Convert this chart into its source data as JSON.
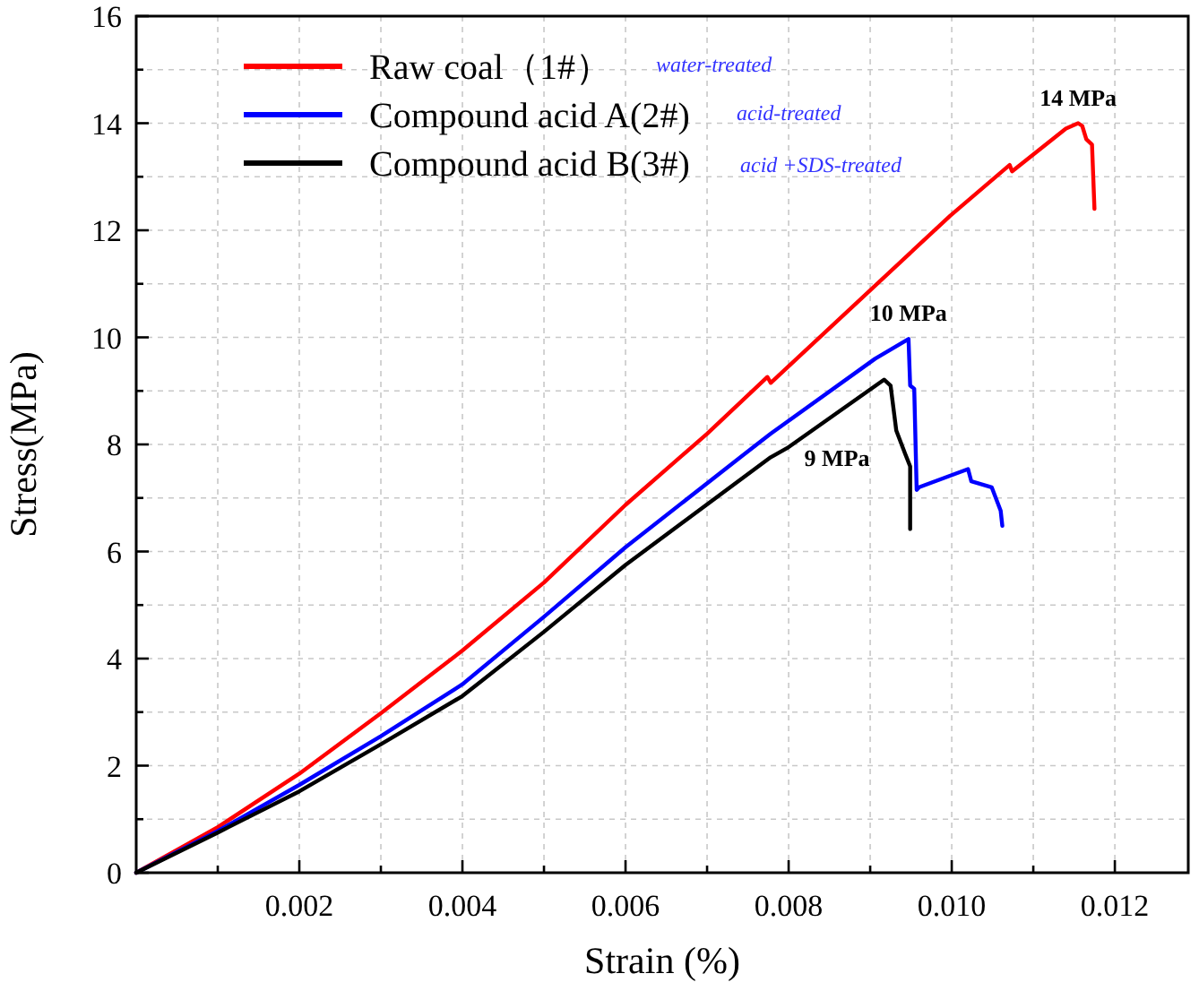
{
  "chart_data": {
    "type": "line",
    "xlabel": "Strain (%)",
    "ylabel": "Stress(MPa)",
    "xlim": [
      0,
      0.0129
    ],
    "ylim": [
      0,
      16
    ],
    "xticks": [
      {
        "value": 0.001,
        "label": null
      },
      0.002,
      {
        "value": 0.003,
        "label": null
      },
      0.004,
      {
        "value": 0.005,
        "label": null
      },
      0.006,
      {
        "value": 0.007,
        "label": null
      },
      0.008,
      {
        "value": 0.009,
        "label": null
      },
      {
        "value": 0.01,
        "label": "0.010"
      },
      {
        "value": 0.011,
        "label": null
      },
      0.012
    ],
    "yticks": [
      0,
      {
        "value": 1,
        "label": null
      },
      2,
      {
        "value": 3,
        "label": null
      },
      4,
      {
        "value": 5,
        "label": null
      },
      6,
      {
        "value": 7,
        "label": null
      },
      8,
      {
        "value": 9,
        "label": null
      },
      10,
      {
        "value": 11,
        "label": null
      },
      12,
      {
        "value": 13,
        "label": null
      },
      14,
      {
        "value": 15,
        "label": null
      },
      16
    ],
    "grid": true,
    "legend": "top left",
    "line_style": "solid",
    "marker": "none",
    "series": [
      {
        "name": "Raw coal（1#）",
        "color": "#ff0000",
        "x": [
          0,
          0.001,
          0.002,
          0.003,
          0.004,
          0.005,
          0.006,
          0.007,
          0.00774,
          0.00778,
          0.00998,
          0.01071,
          0.01074,
          0.0114,
          0.01155,
          0.0116,
          0.01165,
          0.01172,
          0.01175
        ],
        "values": [
          0,
          0.85,
          1.85,
          2.98,
          4.15,
          5.42,
          6.87,
          8.2,
          9.26,
          9.15,
          12.27,
          13.22,
          13.1,
          13.9,
          14,
          13.95,
          13.7,
          13.6,
          12.4
        ]
      },
      {
        "name": "Compound acid A(2#)",
        "color": "#0000ff",
        "x": [
          0,
          0.001,
          0.002,
          0.003,
          0.004,
          0.005,
          0.006,
          0.00755,
          0.00778,
          0.00906,
          0.00947,
          0.00949,
          0.00954,
          0.00957,
          0.0096,
          0.0102,
          0.01024,
          0.01049,
          0.0106,
          0.01062
        ],
        "values": [
          0,
          0.78,
          1.64,
          2.55,
          3.52,
          4.78,
          6.08,
          7.93,
          8.2,
          9.6,
          9.97,
          9.1,
          9.04,
          7.15,
          7.2,
          7.54,
          7.31,
          7.2,
          6.76,
          6.48
        ]
      },
      {
        "name": "Compound acid B(3#)",
        "color": "#000000",
        "x": [
          0,
          0.001,
          0.002,
          0.003,
          0.004,
          0.005,
          0.006,
          0.00778,
          0.00798,
          0.00917,
          0.00925,
          0.00932,
          0.00943,
          0.00949,
          0.00949
        ],
        "values": [
          0,
          0.75,
          1.52,
          2.4,
          3.3,
          4.5,
          5.75,
          7.76,
          7.93,
          9.21,
          9.1,
          8.26,
          7.82,
          7.59,
          6.42
        ]
      }
    ],
    "annotations": [
      "water-treated",
      "acid-treated",
      "acid +SDS-treated",
      {
        "text": "14 MPa",
        "x": 0.01155,
        "y": 14
      },
      {
        "text": "10 MPa",
        "x": 0.00947,
        "y": 9.97
      },
      {
        "text": "9 MPa",
        "x": 0.00917,
        "y": 9.21
      }
    ]
  }
}
